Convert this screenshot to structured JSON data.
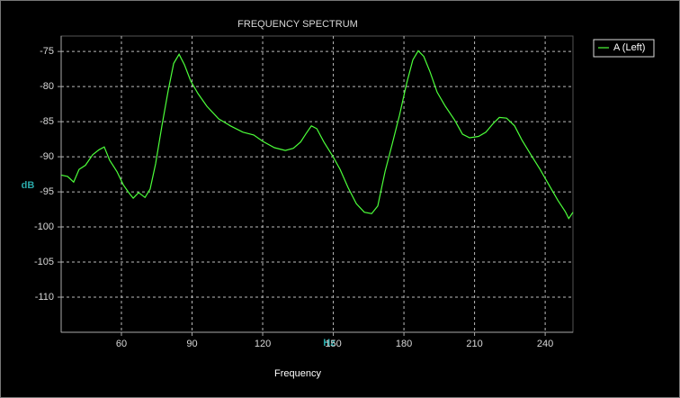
{
  "chart_data": {
    "type": "line",
    "title": "FREQUENCY SPECTRUM",
    "xlabel": "Frequency",
    "xunit": "Hz",
    "yunit": "dB",
    "x": [
      34.4,
      37.1,
      39.7,
      42.0,
      44.7,
      47.8,
      50.5,
      52.7,
      55.0,
      58.1,
      60.8,
      63.1,
      65.0,
      67.3,
      70.0,
      72.2,
      74.5,
      77.2,
      79.9,
      82.2,
      84.5,
      86.8,
      89.4,
      92.5,
      96.3,
      101.3,
      106.3,
      111.6,
      116.2,
      120.0,
      125.0,
      129.6,
      133.0,
      136.1,
      138.4,
      140.7,
      143.0,
      146.0,
      149.9,
      152.9,
      156.3,
      159.8,
      163.2,
      166.3,
      168.9,
      172.0,
      175.0,
      178.1,
      181.2,
      183.8,
      186.1,
      188.4,
      191.1,
      194.1,
      197.6,
      201.4,
      204.9,
      207.9,
      211.7,
      214.8,
      217.8,
      220.5,
      223.6,
      227.0,
      230.1,
      233.9,
      237.8,
      241.6,
      245.4,
      248.5,
      250.0,
      251.8
    ],
    "series": [
      {
        "name": "A (Left)",
        "color": "#4cff3a",
        "values": [
          -92.6,
          -92.8,
          -93.6,
          -91.8,
          -91.2,
          -89.7,
          -89.0,
          -88.6,
          -90.5,
          -92.1,
          -94.0,
          -95.1,
          -95.9,
          -95.1,
          -95.8,
          -94.6,
          -91.0,
          -85.6,
          -80.5,
          -76.7,
          -75.4,
          -76.9,
          -79.2,
          -81.0,
          -82.8,
          -84.6,
          -85.6,
          -86.5,
          -86.9,
          -87.8,
          -88.7,
          -89.1,
          -88.8,
          -87.9,
          -86.7,
          -85.6,
          -86.0,
          -87.9,
          -90.0,
          -91.8,
          -94.4,
          -96.7,
          -97.9,
          -98.1,
          -97.0,
          -92.1,
          -88.2,
          -84.1,
          -79.5,
          -76.2,
          -74.9,
          -75.7,
          -77.9,
          -80.8,
          -82.8,
          -84.7,
          -86.8,
          -87.3,
          -87.1,
          -86.5,
          -85.3,
          -84.4,
          -84.5,
          -85.6,
          -87.6,
          -89.7,
          -91.8,
          -94.0,
          -96.2,
          -97.8,
          -98.8,
          -97.9
        ]
      }
    ],
    "xlim": [
      34.4,
      251.8
    ],
    "ylim": [
      -115,
      -72.8
    ],
    "xticks": [
      60,
      90,
      120,
      150,
      180,
      210,
      240
    ],
    "yticks": [
      -75,
      -80,
      -85,
      -90,
      -95,
      -100,
      -105,
      -110
    ],
    "grid": true,
    "legend": "top-right"
  }
}
